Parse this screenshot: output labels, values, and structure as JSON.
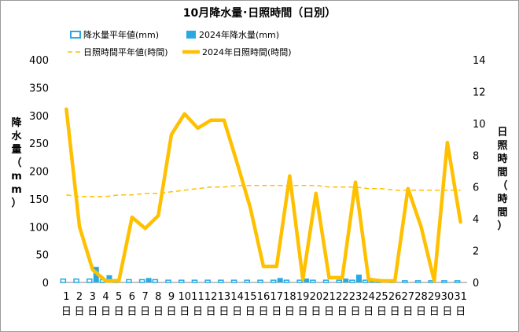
{
  "chart_data": {
    "type": "bar+line",
    "title": "10月降水量･日照時間（日別）",
    "categories": [
      "1",
      "2",
      "3",
      "4",
      "5",
      "6",
      "7",
      "8",
      "9",
      "10",
      "11",
      "12",
      "13",
      "14",
      "15",
      "16",
      "17",
      "18",
      "19",
      "20",
      "21",
      "22",
      "23",
      "24",
      "25",
      "26",
      "27",
      "28",
      "29",
      "30",
      "31"
    ],
    "category_suffix": "日",
    "left_axis": {
      "label": "降水量（mm）",
      "ylim": [
        0,
        400
      ],
      "ticks": [
        0,
        50,
        100,
        150,
        200,
        250,
        300,
        350,
        400
      ]
    },
    "right_axis": {
      "label": "日照時間（時間）",
      "ylim": [
        0,
        14
      ],
      "ticks": [
        0,
        2,
        4,
        6,
        8,
        10,
        12,
        14
      ]
    },
    "series": [
      {
        "name": "降水量平年値(mm)",
        "kind": "bar",
        "axis": "left",
        "color": "#29a9e1",
        "fill": "#ffffff",
        "values": [
          6,
          6,
          6,
          5,
          5,
          5,
          5,
          5,
          4,
          4,
          4,
          4,
          4,
          4,
          4,
          4,
          4,
          4,
          4,
          4,
          4,
          4,
          4,
          4,
          4,
          4,
          3,
          3,
          3,
          3,
          3
        ]
      },
      {
        "name": "2024年降水量(mm)",
        "kind": "bar",
        "axis": "left",
        "color": "#29a9e1",
        "fill": "#29a9e1",
        "values": [
          0,
          0,
          28,
          13,
          0,
          0,
          8,
          0,
          0,
          0,
          0,
          0,
          0,
          0,
          0,
          0,
          8,
          0,
          7,
          0,
          0,
          7,
          14,
          4,
          0,
          0,
          0,
          0,
          0,
          0,
          0
        ]
      },
      {
        "name": "日照時間平年値(時間)",
        "kind": "line",
        "axis": "right",
        "color": "#ffc000",
        "dashed": true,
        "values": [
          5.5,
          5.4,
          5.4,
          5.4,
          5.5,
          5.5,
          5.6,
          5.6,
          5.7,
          5.8,
          5.9,
          6.0,
          6.0,
          6.1,
          6.1,
          6.1,
          6.1,
          6.1,
          6.1,
          6.1,
          6.0,
          6.0,
          6.0,
          5.9,
          5.9,
          5.8,
          5.8,
          5.8,
          5.8,
          5.8,
          5.8
        ]
      },
      {
        "name": "2024年日照時間(時間)",
        "kind": "line",
        "axis": "right",
        "color": "#ffc000",
        "dashed": false,
        "values": [
          10.9,
          3.5,
          0.8,
          0.1,
          0.1,
          4.1,
          3.4,
          4.2,
          9.3,
          10.6,
          9.7,
          10.2,
          10.2,
          7.5,
          4.7,
          1.0,
          1.0,
          6.7,
          0.2,
          5.6,
          0.3,
          0.3,
          6.3,
          0.2,
          0.1,
          0.1,
          5.9,
          3.5,
          0.1,
          8.8,
          3.8
        ]
      }
    ],
    "legend": "top",
    "grid": false
  }
}
